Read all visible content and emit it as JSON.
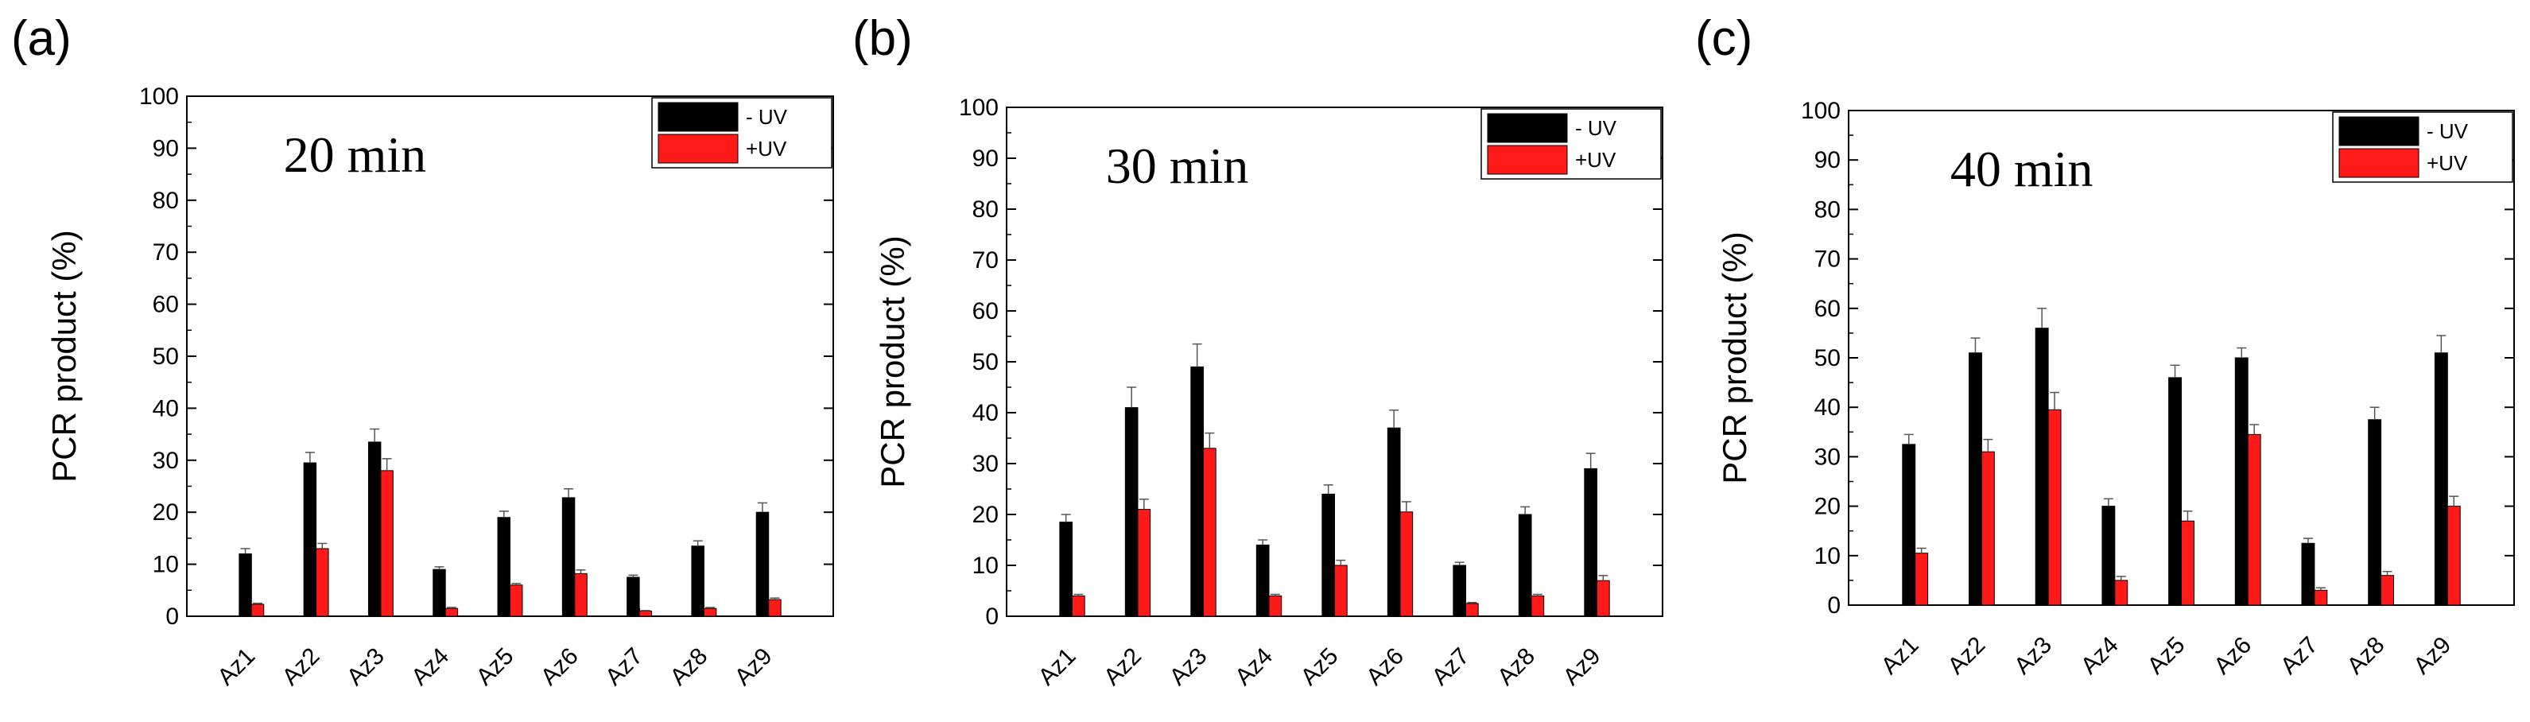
{
  "chart_data": [
    {
      "type": "bar",
      "panel_label": "(a)",
      "title": "20 min",
      "xlabel": "",
      "ylabel": "PCR product (%)",
      "ylim": [
        0,
        100
      ],
      "yticks": [
        "0",
        "10",
        "20",
        "30",
        "40",
        "50",
        "60",
        "70",
        "80",
        "90",
        "100"
      ],
      "categories": [
        "Az1",
        "Az2",
        "Az3",
        "Az4",
        "Az5",
        "Az6",
        "Az7",
        "Az8",
        "Az9"
      ],
      "legend": {
        "position": "top-right"
      },
      "series": [
        {
          "name": "- UV",
          "color": "#000000",
          "values": [
            12,
            29.5,
            33.5,
            9,
            19,
            22.8,
            7.5,
            13.5,
            20
          ],
          "errors": [
            1.0,
            2.0,
            2.5,
            0.5,
            1.2,
            1.7,
            0.4,
            1.0,
            1.8
          ]
        },
        {
          "name": "+UV",
          "color": "#ff1a1a",
          "values": [
            2.3,
            13,
            28,
            1.5,
            6,
            8.2,
            1,
            1.5,
            3.2
          ],
          "errors": [
            0.2,
            1.0,
            2.3,
            0.2,
            0.3,
            0.7,
            0.1,
            0.2,
            0.3
          ]
        }
      ]
    },
    {
      "type": "bar",
      "panel_label": "(b)",
      "title": "30 min",
      "xlabel": "",
      "ylabel": "PCR product (%)",
      "ylim": [
        0,
        100
      ],
      "yticks": [
        "0",
        "10",
        "20",
        "30",
        "40",
        "50",
        "60",
        "70",
        "80",
        "90",
        "100"
      ],
      "categories": [
        "Az1",
        "Az2",
        "Az3",
        "Az4",
        "Az5",
        "Az6",
        "Az7",
        "Az8",
        "Az9"
      ],
      "legend": {
        "position": "top-right"
      },
      "series": [
        {
          "name": "- UV",
          "color": "#000000",
          "values": [
            18.5,
            41,
            49,
            14,
            24,
            37,
            10,
            20,
            29
          ],
          "errors": [
            1.5,
            4.0,
            4.5,
            1.0,
            1.8,
            3.5,
            0.6,
            1.5,
            3.0
          ]
        },
        {
          "name": "+UV",
          "color": "#ff1a1a",
          "values": [
            4,
            21,
            33,
            4,
            10,
            20.5,
            2.5,
            4,
            7
          ],
          "errors": [
            0.3,
            2.0,
            3.0,
            0.3,
            1.0,
            2.0,
            0.2,
            0.3,
            1.0
          ]
        }
      ]
    },
    {
      "type": "bar",
      "panel_label": "(c)",
      "title": "40 min",
      "xlabel": "",
      "ylabel": "PCR product (%)",
      "ylim": [
        0,
        100
      ],
      "yticks": [
        "0",
        "10",
        "20",
        "30",
        "40",
        "50",
        "60",
        "70",
        "80",
        "90",
        "100"
      ],
      "categories": [
        "Az1",
        "Az2",
        "Az3",
        "Az4",
        "Az5",
        "Az6",
        "Az7",
        "Az8",
        "Az9"
      ],
      "legend": {
        "position": "top-right"
      },
      "series": [
        {
          "name": "- UV",
          "color": "#000000",
          "values": [
            32.5,
            51,
            56,
            20,
            46,
            50,
            12.5,
            37.5,
            51
          ],
          "errors": [
            2.0,
            3.0,
            4.0,
            1.5,
            2.5,
            2.0,
            1.0,
            2.5,
            3.5
          ]
        },
        {
          "name": "+UV",
          "color": "#ff1a1a",
          "values": [
            10.5,
            31,
            39.5,
            5,
            17,
            34.5,
            3,
            6,
            20
          ],
          "errors": [
            1.0,
            2.5,
            3.5,
            0.8,
            2.0,
            2.0,
            0.5,
            0.8,
            2.0
          ]
        }
      ]
    }
  ]
}
